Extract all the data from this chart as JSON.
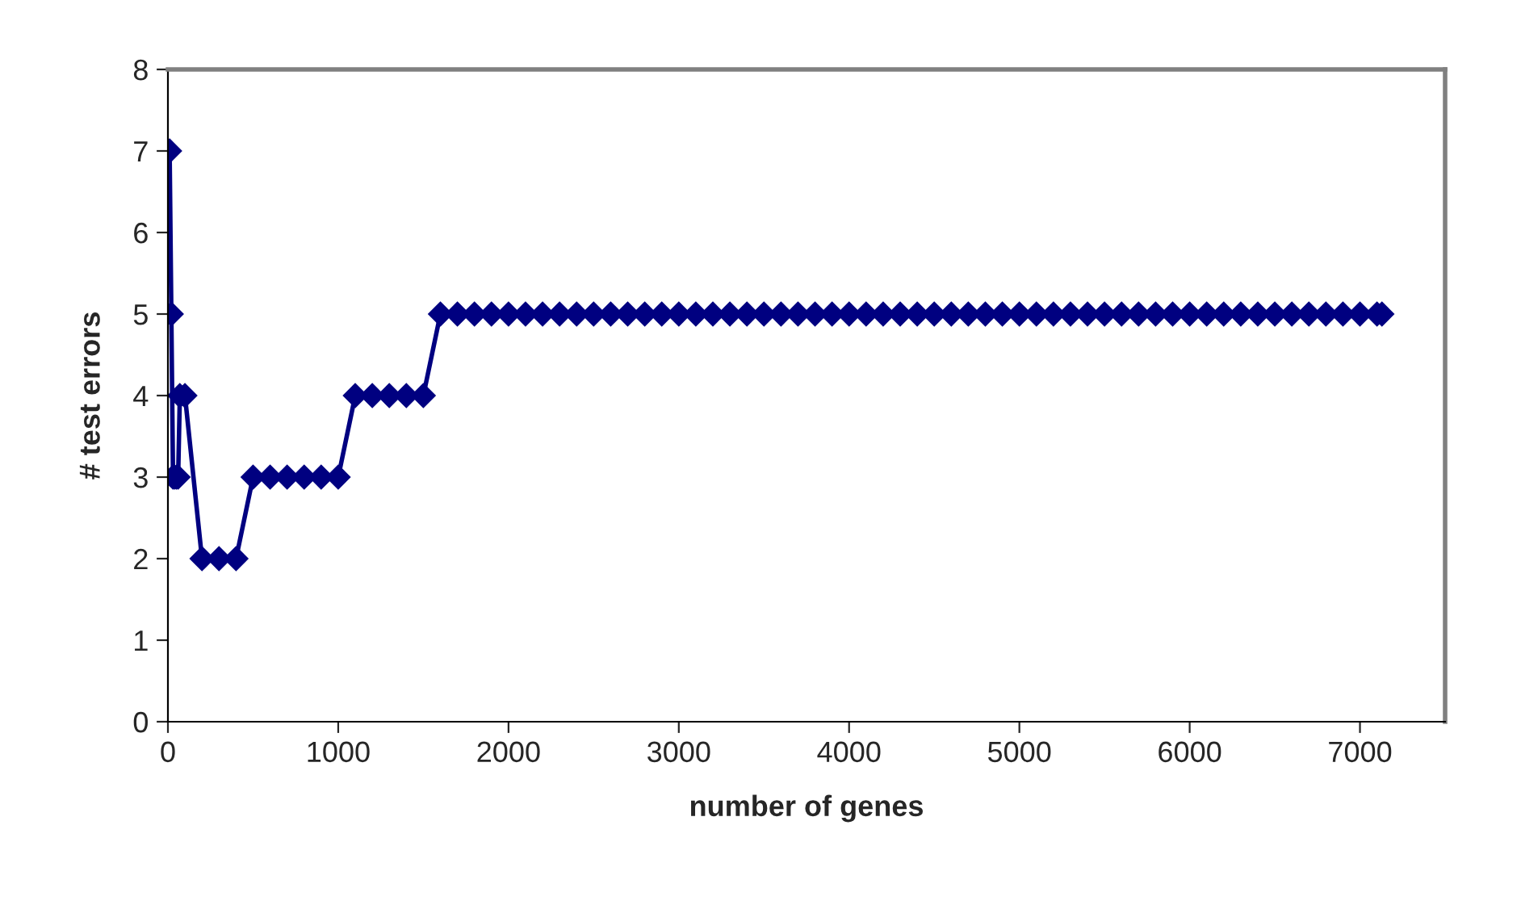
{
  "chart_data": {
    "type": "line",
    "xlabel": "number of genes",
    "ylabel": "# test errors",
    "x": [
      10,
      20,
      30,
      40,
      50,
      60,
      70,
      100,
      200,
      300,
      400,
      500,
      600,
      700,
      800,
      900,
      1000,
      1100,
      1200,
      1300,
      1400,
      1500,
      1600,
      1700,
      1800,
      1900,
      2000,
      2100,
      2200,
      2300,
      2400,
      2500,
      2600,
      2700,
      2800,
      2900,
      3000,
      3100,
      3200,
      3300,
      3400,
      3500,
      3600,
      3700,
      3800,
      3900,
      4000,
      4100,
      4200,
      4300,
      4400,
      4500,
      4600,
      4700,
      4800,
      4900,
      5000,
      5100,
      5200,
      5300,
      5400,
      5500,
      5600,
      5700,
      5800,
      5900,
      6000,
      6100,
      6200,
      6300,
      6400,
      6500,
      6600,
      6700,
      6800,
      6900,
      7000,
      7100,
      7129
    ],
    "series": [
      {
        "color": "#000080",
        "values": [
          7,
          5,
          3,
          3,
          3,
          3,
          4,
          4,
          2,
          2,
          2,
          3,
          3,
          3,
          3,
          3,
          3,
          4,
          4,
          4,
          4,
          4,
          5,
          5,
          5,
          5,
          5,
          5,
          5,
          5,
          5,
          5,
          5,
          5,
          5,
          5,
          5,
          5,
          5,
          5,
          5,
          5,
          5,
          5,
          5,
          5,
          5,
          5,
          5,
          5,
          5,
          5,
          5,
          5,
          5,
          5,
          5,
          5,
          5,
          5,
          5,
          5,
          5,
          5,
          5,
          5,
          5,
          5,
          5,
          5,
          5,
          5,
          5,
          5,
          5,
          5,
          5,
          5,
          5
        ]
      }
    ],
    "xlim": [
      0,
      7500
    ],
    "xticks": [
      0,
      1000,
      2000,
      3000,
      4000,
      5000,
      6000,
      7000
    ],
    "ylim": [
      0,
      8
    ],
    "yticks": [
      0,
      1,
      2,
      3,
      4,
      5,
      6,
      7,
      8
    ],
    "grid": false,
    "marker": "diamond",
    "line_style": "solid"
  }
}
